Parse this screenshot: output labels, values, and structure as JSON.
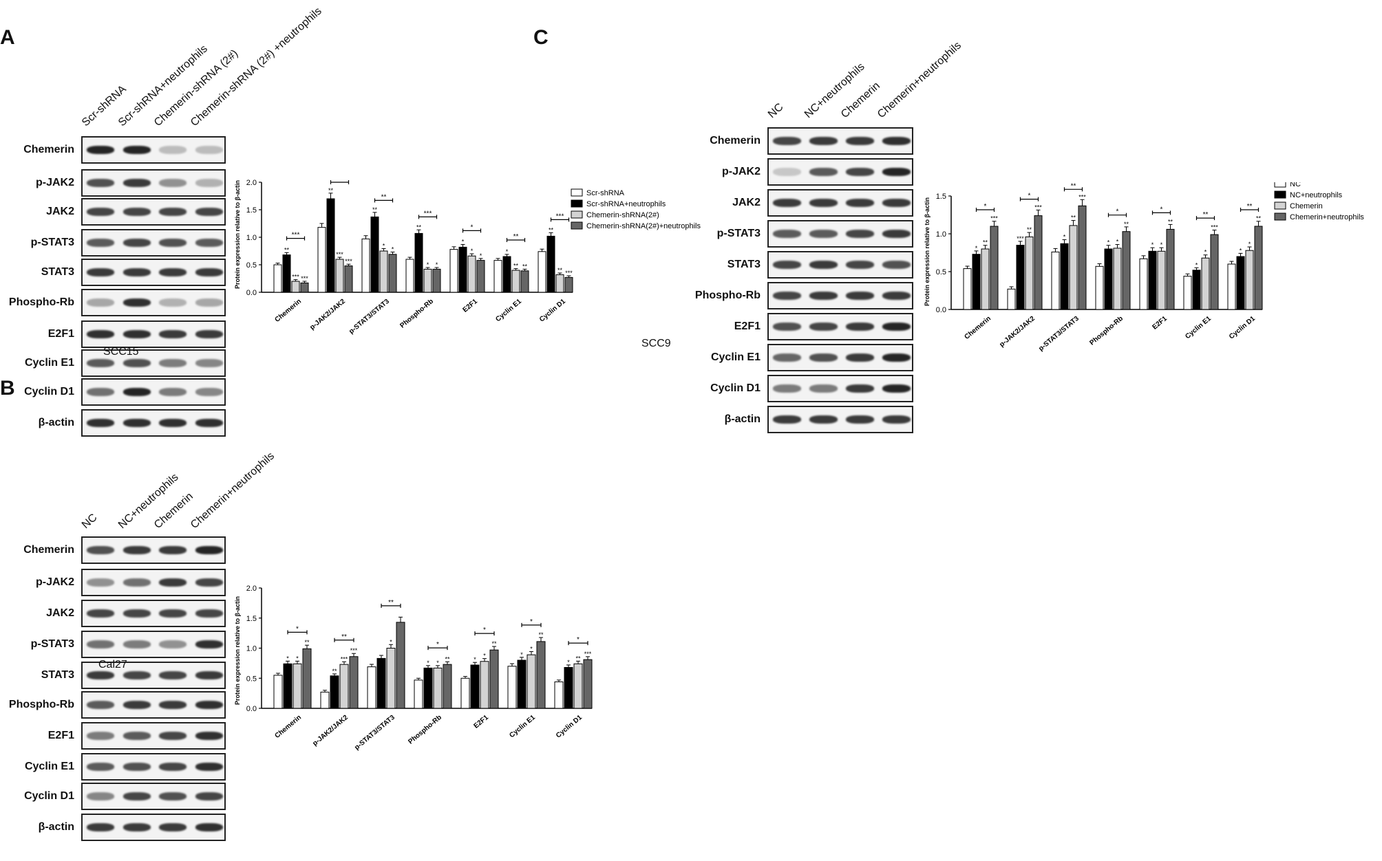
{
  "panels": [
    {
      "letter": "A",
      "cell_line": "SCC15",
      "conditions": [
        "Scr-shRNA",
        "Scr-shRNA+neutrophils",
        "Chemerin-shRNA (2#)",
        "Chemerin-shRNA (2#) +neutrophils"
      ],
      "blot_rows": [
        "Chemerin",
        "p-JAK2",
        "JAK2",
        "p-STAT3",
        "STAT3",
        "Phospho-Rb",
        "E2F1",
        "Cyclin E1",
        "Cyclin D1",
        "β-actin"
      ],
      "band_intensity": [
        [
          0.95,
          0.95,
          0.25,
          0.25
        ],
        [
          0.75,
          0.85,
          0.45,
          0.3
        ],
        [
          0.8,
          0.8,
          0.8,
          0.8
        ],
        [
          0.7,
          0.8,
          0.75,
          0.7
        ],
        [
          0.85,
          0.85,
          0.85,
          0.85
        ],
        [
          0.35,
          0.9,
          0.3,
          0.35
        ],
        [
          0.9,
          0.9,
          0.85,
          0.85
        ],
        [
          0.7,
          0.75,
          0.55,
          0.5
        ],
        [
          0.6,
          0.95,
          0.55,
          0.5
        ],
        [
          0.9,
          0.9,
          0.9,
          0.9
        ]
      ]
    },
    {
      "letter": "B",
      "cell_line": "Cal27",
      "conditions": [
        "NC",
        "NC+neutrophils",
        "Chemerin",
        "Chemerin+neutrophils"
      ],
      "blot_rows": [
        "Chemerin",
        "p-JAK2",
        "JAK2",
        "p-STAT3",
        "STAT3",
        "Phospho-Rb",
        "E2F1",
        "Cyclin E1",
        "Cyclin D1",
        "β-actin"
      ],
      "band_intensity": [
        [
          0.75,
          0.85,
          0.85,
          0.95
        ],
        [
          0.45,
          0.6,
          0.85,
          0.8
        ],
        [
          0.8,
          0.8,
          0.8,
          0.8
        ],
        [
          0.6,
          0.55,
          0.45,
          0.9
        ],
        [
          0.85,
          0.8,
          0.8,
          0.85
        ],
        [
          0.7,
          0.85,
          0.85,
          0.9
        ],
        [
          0.55,
          0.7,
          0.8,
          0.9
        ],
        [
          0.7,
          0.75,
          0.8,
          0.9
        ],
        [
          0.5,
          0.8,
          0.75,
          0.8
        ],
        [
          0.85,
          0.85,
          0.85,
          0.9
        ]
      ]
    },
    {
      "letter": "C",
      "cell_line": "SCC9",
      "conditions": [
        "NC",
        "NC+neutrophils",
        "Chemerin",
        "Chemerin+neutrophils"
      ],
      "blot_rows": [
        "Chemerin",
        "p-JAK2",
        "JAK2",
        "p-STAT3",
        "STAT3",
        "Phospho-Rb",
        "E2F1",
        "Cyclin E1",
        "Cyclin D1",
        "β-actin"
      ],
      "band_intensity": [
        [
          0.8,
          0.85,
          0.85,
          0.9
        ],
        [
          0.2,
          0.7,
          0.8,
          0.95
        ],
        [
          0.85,
          0.85,
          0.85,
          0.85
        ],
        [
          0.7,
          0.7,
          0.8,
          0.85
        ],
        [
          0.8,
          0.85,
          0.8,
          0.75
        ],
        [
          0.8,
          0.85,
          0.85,
          0.85
        ],
        [
          0.75,
          0.8,
          0.85,
          0.95
        ],
        [
          0.65,
          0.75,
          0.85,
          0.95
        ],
        [
          0.55,
          0.55,
          0.85,
          0.95
        ],
        [
          0.85,
          0.85,
          0.85,
          0.85
        ]
      ]
    }
  ],
  "chart_data": [
    {
      "type": "bar",
      "panel": "A",
      "ylabel": "Protein expression relative to β-actin",
      "ylim": [
        0,
        2.0
      ],
      "yticks": [
        "0.0",
        "0.5",
        "1.0",
        "1.5",
        "2.0"
      ],
      "categories": [
        "Chemerin",
        "p-JAK2/JAK2",
        "p-STAT3/STAT3",
        "Phospho-Rb",
        "E2F1",
        "Cyclin E1",
        "Cyclin D1"
      ],
      "series": [
        {
          "name": "Scr-shRNA",
          "color": "#ffffff",
          "values": [
            0.5,
            1.18,
            0.97,
            0.6,
            0.78,
            0.58,
            0.74
          ],
          "stars": [
            "",
            "",
            "",
            "",
            "",
            "",
            ""
          ]
        },
        {
          "name": "Scr-shRNA+neutrophils",
          "color": "#000000",
          "values": [
            0.68,
            1.7,
            1.37,
            1.07,
            0.82,
            0.65,
            1.02
          ],
          "stars": [
            "**",
            "**",
            "**",
            "**",
            "*",
            "*",
            "**"
          ]
        },
        {
          "name": "Chemerin-shRNA(2#)",
          "color": "#d3d3d3",
          "values": [
            0.2,
            0.6,
            0.75,
            0.42,
            0.66,
            0.4,
            0.32
          ],
          "stars": [
            "***",
            "***",
            "*",
            "*",
            "*",
            "**",
            "**"
          ]
        },
        {
          "name": "Chemerin-shRNA(2#)+neutrophils",
          "color": "#666666",
          "values": [
            0.17,
            0.48,
            0.69,
            0.42,
            0.58,
            0.39,
            0.27
          ],
          "stars": [
            "***",
            "***",
            "*",
            "*",
            "*",
            "**",
            "***"
          ]
        }
      ],
      "brackets": [
        "***",
        "***",
        "**",
        "***",
        "*",
        "**",
        "***"
      ],
      "legend": "top-right"
    },
    {
      "type": "bar",
      "panel": "B",
      "ylabel": "Protein expression relative to β-actin",
      "ylim": [
        0,
        2.0
      ],
      "yticks": [
        "0.0",
        "0.5",
        "1.0",
        "1.5",
        "2.0"
      ],
      "categories": [
        "Chemerin",
        "p-JAK2/JAK2",
        "p-STAT3/STAT3",
        "Phospho-Rb",
        "E2F1",
        "Cyclin E1",
        "Cyclin D1"
      ],
      "series": [
        {
          "name": "NC",
          "color": "#ffffff",
          "values": [
            0.55,
            0.27,
            0.69,
            0.47,
            0.5,
            0.7,
            0.44
          ],
          "stars": [
            "",
            "",
            "",
            "",
            "",
            "",
            ""
          ]
        },
        {
          "name": "NC+neutrophils",
          "color": "#000000",
          "values": [
            0.74,
            0.54,
            0.83,
            0.67,
            0.72,
            0.8,
            0.68
          ],
          "stars": [
            "*",
            "**",
            "",
            "*",
            "*",
            "*",
            "*"
          ]
        },
        {
          "name": "Chemerin",
          "color": "#d3d3d3",
          "values": [
            0.74,
            0.73,
            1.0,
            0.67,
            0.78,
            0.89,
            0.74
          ],
          "stars": [
            "*",
            "***",
            "*",
            "*",
            "*",
            "*",
            "**"
          ]
        },
        {
          "name": "Chemerin+neutrophils",
          "color": "#666666",
          "values": [
            0.99,
            0.86,
            1.43,
            0.73,
            0.97,
            1.11,
            0.81
          ],
          "stars": [
            "**",
            "***",
            "",
            "**",
            "**",
            "**",
            "***"
          ]
        }
      ],
      "brackets": [
        "*",
        "**",
        "**",
        "*",
        "*",
        "*",
        "*"
      ],
      "legend": "top-right"
    },
    {
      "type": "bar",
      "panel": "C",
      "ylabel": "Protein expression relative to β-actin",
      "ylim": [
        0,
        1.5
      ],
      "yticks": [
        "0.0",
        "0.5",
        "1.0",
        "1.5"
      ],
      "categories": [
        "Chemerin",
        "p-JAK2/JAK2",
        "p-STAT3/STAT3",
        "Phospho-Rb",
        "E2F1",
        "Cyclin E1",
        "Cyclin D1"
      ],
      "series": [
        {
          "name": "NC",
          "color": "#ffffff",
          "values": [
            0.54,
            0.27,
            0.76,
            0.57,
            0.67,
            0.44,
            0.6
          ],
          "stars": [
            "",
            "",
            "",
            "",
            "",
            "",
            ""
          ]
        },
        {
          "name": "NC+neutrophils",
          "color": "#000000",
          "values": [
            0.73,
            0.85,
            0.87,
            0.8,
            0.77,
            0.52,
            0.7
          ],
          "stars": [
            "*",
            "***",
            "*",
            "*",
            "*",
            "*",
            "*"
          ]
        },
        {
          "name": "Chemerin",
          "color": "#d3d3d3",
          "values": [
            0.8,
            0.96,
            1.11,
            0.81,
            0.77,
            0.68,
            0.78
          ],
          "stars": [
            "**",
            "**",
            "**",
            "*",
            "*",
            "*",
            "*"
          ]
        },
        {
          "name": "Chemerin+neutrophils",
          "color": "#666666",
          "values": [
            1.1,
            1.24,
            1.37,
            1.03,
            1.06,
            0.99,
            1.1
          ],
          "stars": [
            "***",
            "***",
            "***",
            "**",
            "**",
            "***",
            "**"
          ]
        }
      ],
      "brackets": [
        "*",
        "*",
        "**",
        "*",
        "*",
        "**",
        "**"
      ],
      "legend": "top-right"
    }
  ]
}
